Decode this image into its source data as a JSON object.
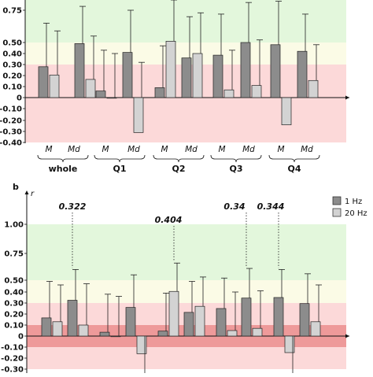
{
  "colors": {
    "series_1hz": "#8c8c8c",
    "series_20hz": "#d3d3d3",
    "band_large": "#e3f7dc",
    "band_medium": "#fbfbe6",
    "band_small": "#fcd9d9",
    "band_negligible": "#ee9a9a"
  },
  "chart_data": [
    {
      "type": "bar",
      "panel": "a",
      "xlabel": "",
      "ylabel": "",
      "ylim": [
        -0.4,
        0.85
      ],
      "y_tick_labels": [
        "0.75",
        "0.50",
        "0.40",
        "0.30",
        "0.20",
        "0.10",
        "0",
        "-0.10",
        "-0.20",
        "-0.30",
        "-0.40"
      ],
      "y_ticks": [
        0.75,
        0.5,
        0.4,
        0.3,
        0.2,
        0.1,
        0,
        -0.1,
        -0.2,
        -0.3,
        -0.4
      ],
      "background_bands": [
        {
          "from": 0.5,
          "to": 1.0,
          "color": "band_large"
        },
        {
          "from": 0.3,
          "to": 0.5,
          "color": "band_medium"
        },
        {
          "from": -0.4,
          "to": 0.3,
          "color": "band_small"
        }
      ],
      "groups": [
        "whole",
        "Q1",
        "Q2",
        "Q3",
        "Q4"
      ],
      "subcategories": [
        "M",
        "Md"
      ],
      "series": [
        {
          "color": "series_1hz",
          "values": [
            0.28,
            0.205,
            0.49,
            0.165,
            0.06,
            0.0,
            0.41,
            -0.31,
            0.09,
            0.51,
            0.36,
            0.4,
            0.385,
            0.5,
            0.11,
            0.07,
            0.48,
            -0.24,
            0.42,
            0.155
          ]
        },
        {
          "color": "series_20hz",
          "values": []
        }
      ],
      "bars": [
        {
          "group": "whole",
          "sub": "M",
          "series": 0,
          "value": 0.28,
          "err": 0.65
        },
        {
          "group": "whole",
          "sub": "M",
          "series": 1,
          "value": 0.205,
          "err": 0.59
        },
        {
          "group": "whole",
          "sub": "Md",
          "series": 0,
          "value": 0.49,
          "err": 0.78
        },
        {
          "group": "whole",
          "sub": "Md",
          "series": 1,
          "value": 0.165,
          "err": 0.55
        },
        {
          "group": "Q1",
          "sub": "M",
          "series": 0,
          "value": 0.06,
          "err": 0.43
        },
        {
          "group": "Q1",
          "sub": "M",
          "series": 1,
          "value": 0.0,
          "err": 0.4
        },
        {
          "group": "Q1",
          "sub": "Md",
          "series": 0,
          "value": 0.41,
          "err": 0.75
        },
        {
          "group": "Q1",
          "sub": "Md",
          "series": 1,
          "value": -0.31,
          "err": 0.32
        },
        {
          "group": "Q2",
          "sub": "M",
          "series": 0,
          "value": 0.09,
          "err": 0.47
        },
        {
          "group": "Q2",
          "sub": "M",
          "series": 1,
          "value": 0.51,
          "err": 0.85
        },
        {
          "group": "Q2",
          "sub": "Md",
          "series": 0,
          "value": 0.36,
          "err": 0.7
        },
        {
          "group": "Q2",
          "sub": "Md",
          "series": 1,
          "value": 0.4,
          "err": 0.73
        },
        {
          "group": "Q3",
          "sub": "M",
          "series": 0,
          "value": 0.385,
          "err": 0.72
        },
        {
          "group": "Q3",
          "sub": "M",
          "series": 1,
          "value": 0.07,
          "err": 0.43
        },
        {
          "group": "Q3",
          "sub": "Md",
          "series": 0,
          "value": 0.5,
          "err": 0.81
        },
        {
          "group": "Q3",
          "sub": "Md",
          "series": 1,
          "value": 0.11,
          "err": 0.52
        },
        {
          "group": "Q4",
          "sub": "M",
          "series": 0,
          "value": 0.48,
          "err": 0.82
        },
        {
          "group": "Q4",
          "sub": "M",
          "series": 1,
          "value": -0.24,
          "err": 0.0
        },
        {
          "group": "Q4",
          "sub": "Md",
          "series": 0,
          "value": 0.42,
          "err": 0.72
        },
        {
          "group": "Q4",
          "sub": "Md",
          "series": 1,
          "value": 0.155,
          "err": 0.48
        }
      ]
    },
    {
      "type": "bar",
      "panel": "b",
      "panel_letter": "b",
      "ylabel": "r",
      "ylim": [
        -0.3,
        1.12
      ],
      "y_tick_labels": [
        "1.00",
        "0.75",
        "0.50",
        "0.40",
        "0.30",
        "0.20",
        "0.10",
        "0",
        "-0.10",
        "-0.20",
        "-0.30"
      ],
      "y_ticks": [
        1.0,
        0.75,
        0.5,
        0.4,
        0.3,
        0.2,
        0.1,
        0,
        -0.1,
        -0.2,
        -0.3
      ],
      "background_bands": [
        {
          "from": 0.5,
          "to": 1.0,
          "color": "band_large"
        },
        {
          "from": 0.3,
          "to": 0.5,
          "color": "band_medium"
        },
        {
          "from": -0.3,
          "to": 0.3,
          "color": "band_small"
        },
        {
          "from": -0.1,
          "to": 0.1,
          "color": "band_negligible"
        }
      ],
      "legend": {
        "placement": "top-right",
        "entries": [
          {
            "label": "1 Hz",
            "color": "series_1hz"
          },
          {
            "label": "20 Hz",
            "color": "series_20hz"
          }
        ]
      },
      "annotations": [
        "0.322",
        "0.404",
        "0.34",
        "0.344"
      ],
      "bars": [
        {
          "series": 0,
          "value": 0.165,
          "err": 0.49
        },
        {
          "series": 1,
          "value": 0.13,
          "err": 0.46
        },
        {
          "series": 0,
          "value": 0.325,
          "err": 0.6
        },
        {
          "series": 1,
          "value": 0.1,
          "err": 0.47
        },
        {
          "series": 0,
          "value": 0.035,
          "err": 0.38
        },
        {
          "series": 1,
          "value": 0.0,
          "err": 0.36
        },
        {
          "series": 0,
          "value": 0.26,
          "err": 0.55
        },
        {
          "series": 1,
          "value": -0.16,
          "err": 0.0
        },
        {
          "series": 0,
          "value": 0.045,
          "err": 0.39
        },
        {
          "series": 1,
          "value": 0.405,
          "err": 0.66
        },
        {
          "series": 0,
          "value": 0.215,
          "err": 0.49
        },
        {
          "series": 1,
          "value": 0.27,
          "err": 0.53
        },
        {
          "series": 0,
          "value": 0.25,
          "err": 0.52
        },
        {
          "series": 1,
          "value": 0.05,
          "err": 0.4
        },
        {
          "series": 0,
          "value": 0.345,
          "err": 0.61
        },
        {
          "series": 1,
          "value": 0.07,
          "err": 0.41
        },
        {
          "series": 0,
          "value": 0.35,
          "err": 0.6
        },
        {
          "series": 1,
          "value": -0.15,
          "err": 0.0
        },
        {
          "series": 0,
          "value": 0.295,
          "err": 0.56
        },
        {
          "series": 1,
          "value": 0.13,
          "err": 0.46
        }
      ]
    }
  ]
}
